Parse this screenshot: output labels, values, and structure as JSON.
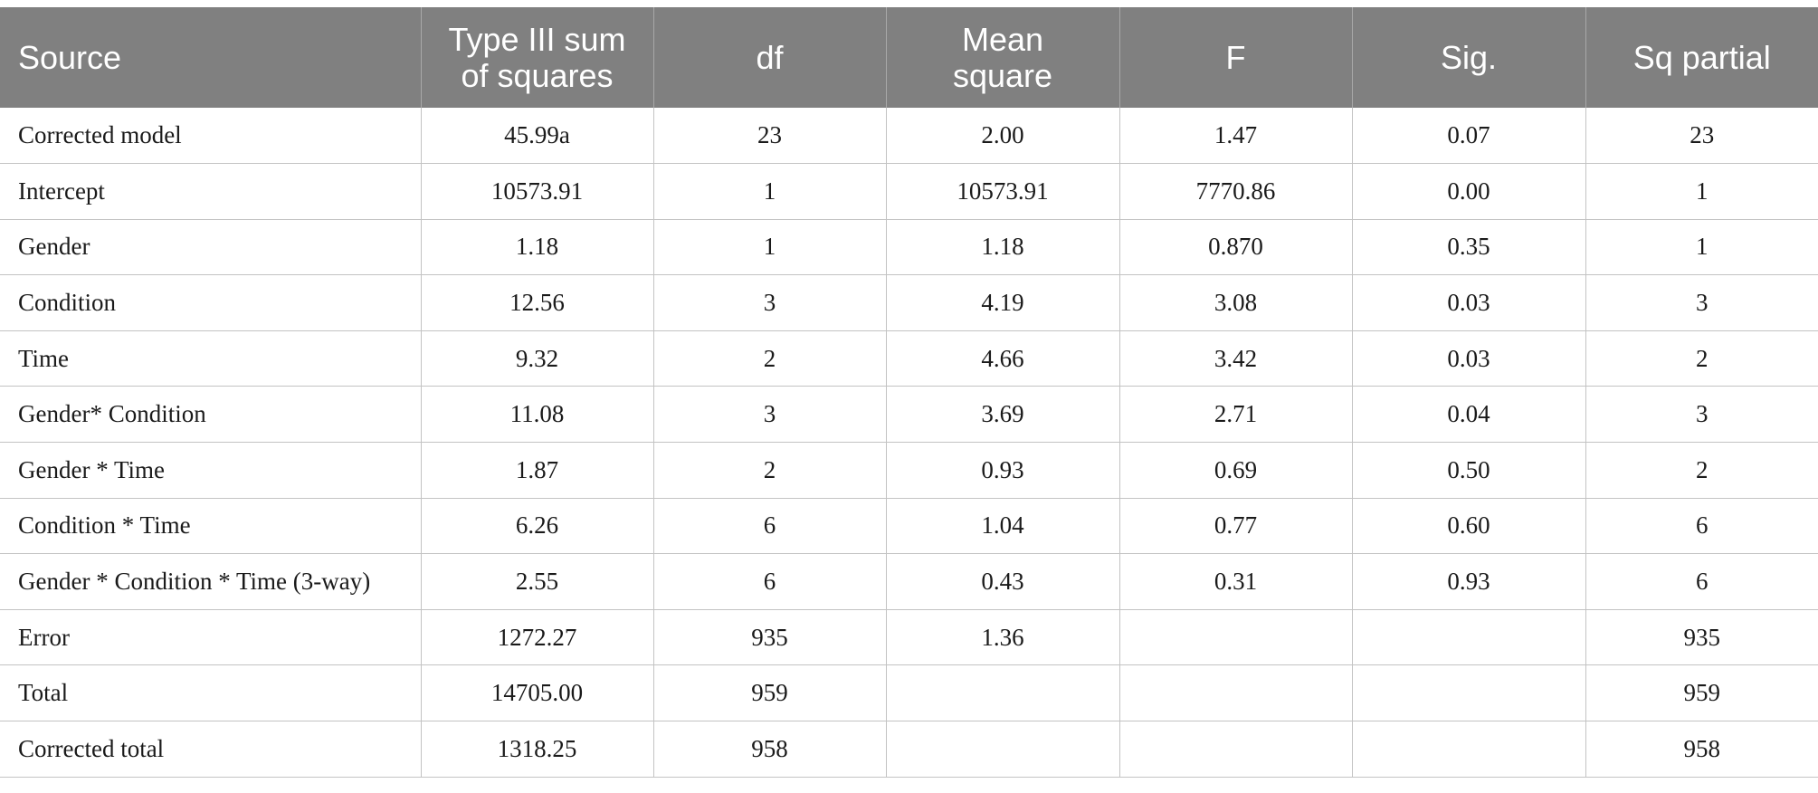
{
  "table": {
    "headers": [
      [
        "Source"
      ],
      [
        "Type III sum",
        "of squares"
      ],
      [
        "df"
      ],
      [
        "Mean",
        "square"
      ],
      [
        "F"
      ],
      [
        "Sig."
      ],
      [
        "Sq partial"
      ]
    ],
    "rows": [
      [
        "Corrected model",
        "45.99a",
        "23",
        "2.00",
        "1.47",
        "0.07",
        "23"
      ],
      [
        "Intercept",
        "10573.91",
        "1",
        "10573.91",
        "7770.86",
        "0.00",
        "1"
      ],
      [
        "Gender",
        "1.18",
        "1",
        "1.18",
        "0.870",
        "0.35",
        "1"
      ],
      [
        "Condition",
        "12.56",
        "3",
        "4.19",
        "3.08",
        "0.03",
        "3"
      ],
      [
        "Time",
        "9.32",
        "2",
        "4.66",
        "3.42",
        "0.03",
        "2"
      ],
      [
        "Gender* Condition",
        "11.08",
        "3",
        "3.69",
        "2.71",
        "0.04",
        "3"
      ],
      [
        "Gender * Time",
        "1.87",
        "2",
        "0.93",
        "0.69",
        "0.50",
        "2"
      ],
      [
        "Condition * Time",
        "6.26",
        "6",
        "1.04",
        "0.77",
        "0.60",
        "6"
      ],
      [
        "Gender * Condition * Time (3-way)",
        "2.55",
        "6",
        "0.43",
        "0.31",
        "0.93",
        "6"
      ],
      [
        "Error",
        "1272.27",
        "935",
        "1.36",
        "",
        "",
        "935"
      ],
      [
        "Total",
        "14705.00",
        "959",
        "",
        "",
        "",
        "959"
      ],
      [
        "Corrected total",
        "1318.25",
        "958",
        "",
        "",
        "",
        "958"
      ]
    ]
  }
}
